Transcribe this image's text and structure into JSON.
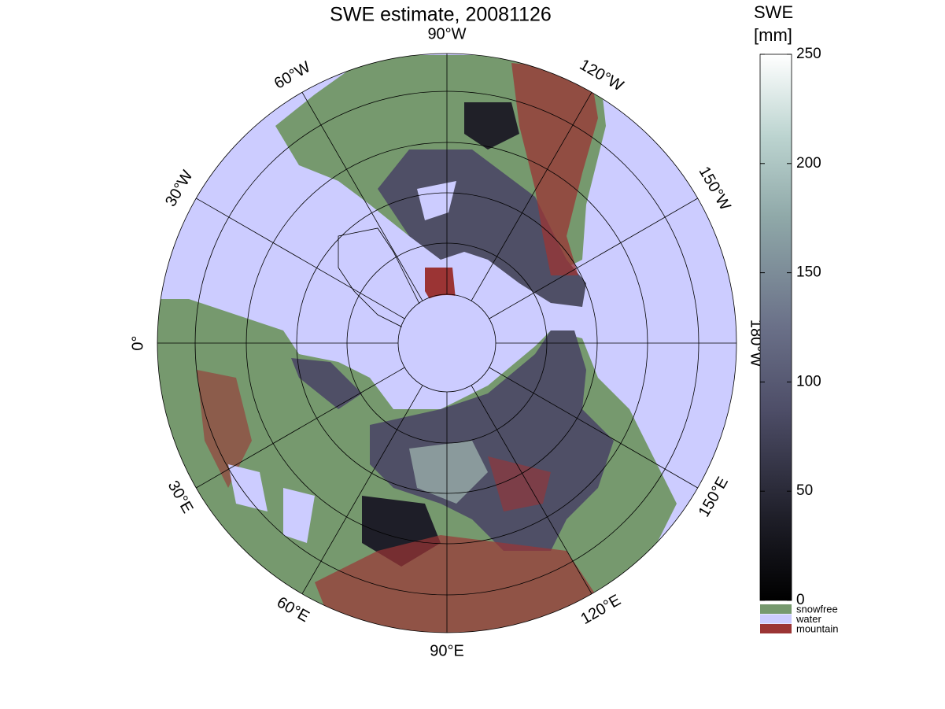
{
  "title": "SWE estimate, 20081126",
  "longitude_labels": [
    "90°W",
    "120°W",
    "150°W",
    "180°W",
    "150°E",
    "120°E",
    "90°E",
    "60°E",
    "30°E",
    "0°",
    "30°W",
    "60°W"
  ],
  "colorbar": {
    "title": [
      "SWE",
      "[mm]"
    ],
    "lim": [
      0,
      250
    ],
    "ticks": [
      0,
      50,
      100,
      150,
      200,
      250
    ]
  },
  "legend": [
    {
      "label": "snowfree",
      "color": "#76996e"
    },
    {
      "label": "water",
      "color": "#ccccff"
    },
    {
      "label": "mountain",
      "color": "#9b3434"
    }
  ]
}
